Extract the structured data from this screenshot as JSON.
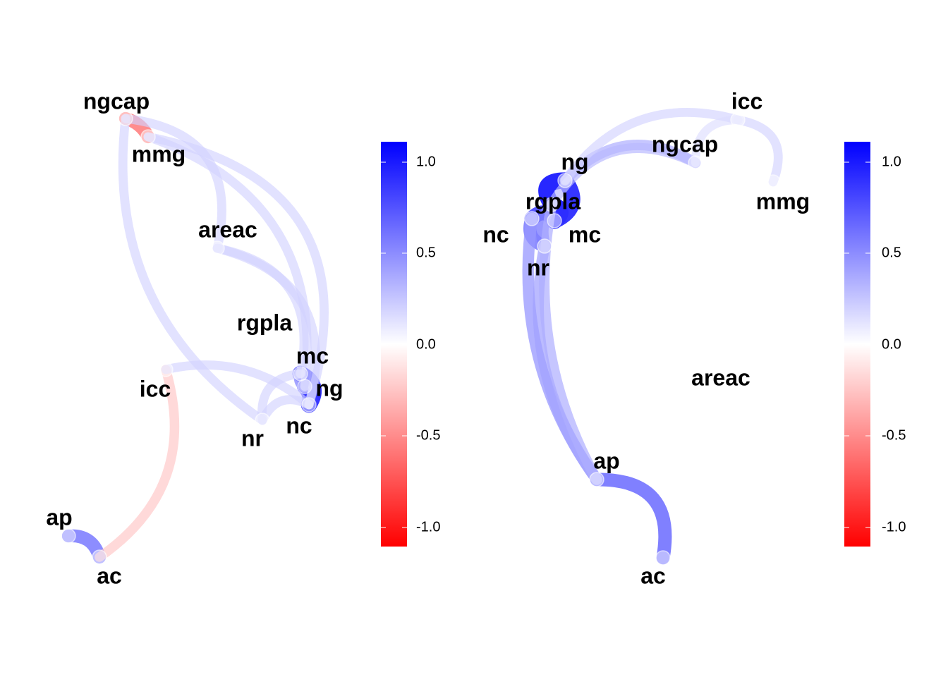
{
  "chart_data": [
    {
      "type": "network",
      "nodes": [
        {
          "id": "ngcap",
          "label": "ngcap"
        },
        {
          "id": "mmg",
          "label": "mmg"
        },
        {
          "id": "areac",
          "label": "areac"
        },
        {
          "id": "rgpla",
          "label": "rgpla"
        },
        {
          "id": "mc",
          "label": "mc"
        },
        {
          "id": "ng",
          "label": "ng"
        },
        {
          "id": "nc",
          "label": "nc"
        },
        {
          "id": "nr",
          "label": "nr"
        },
        {
          "id": "icc",
          "label": "icc"
        },
        {
          "id": "ap",
          "label": "ap"
        },
        {
          "id": "ac",
          "label": "ac"
        }
      ],
      "edges": [
        {
          "from": "ngcap",
          "to": "mmg",
          "value": -0.6
        },
        {
          "from": "ap",
          "to": "ac",
          "value": 0.6
        },
        {
          "from": "icc",
          "to": "ac",
          "value": -0.25
        },
        {
          "from": "mc",
          "to": "ng",
          "value": 0.9
        },
        {
          "from": "nc",
          "to": "ng",
          "value": 0.85
        },
        {
          "from": "mc",
          "to": "nc",
          "value": 0.5
        },
        {
          "from": "ngcap",
          "to": "nr",
          "value": 0.2
        },
        {
          "from": "mmg",
          "to": "nc",
          "value": 0.2
        },
        {
          "from": "ngcap",
          "to": "areac",
          "value": 0.2
        },
        {
          "from": "areac",
          "to": "mc",
          "value": 0.2
        },
        {
          "from": "areac",
          "to": "ng",
          "value": 0.2
        },
        {
          "from": "mmg",
          "to": "ng",
          "value": 0.2
        },
        {
          "from": "icc",
          "to": "ng",
          "value": 0.2
        },
        {
          "from": "nr",
          "to": "mc",
          "value": 0.2
        },
        {
          "from": "nr",
          "to": "ng",
          "value": 0.2
        }
      ],
      "colorbar": {
        "range": [
          -1.1,
          1.1
        ],
        "ticks": [
          "1.0",
          "0.5",
          "0.0",
          "-0.5",
          "-1.0"
        ],
        "low_color": "#FF0000",
        "mid_color": "#FFFFFF",
        "high_color": "#0000FF"
      }
    },
    {
      "type": "network",
      "nodes": [
        {
          "id": "icc",
          "label": "icc"
        },
        {
          "id": "ngcap",
          "label": "ngcap"
        },
        {
          "id": "mmg",
          "label": "mmg"
        },
        {
          "id": "ng",
          "label": "ng"
        },
        {
          "id": "rgpla",
          "label": "rgpla"
        },
        {
          "id": "nc",
          "label": "nc"
        },
        {
          "id": "mc",
          "label": "mc"
        },
        {
          "id": "nr",
          "label": "nr"
        },
        {
          "id": "areac",
          "label": "areac"
        },
        {
          "id": "ap",
          "label": "ap"
        },
        {
          "id": "ac",
          "label": "ac"
        }
      ],
      "edges": [
        {
          "from": "ap",
          "to": "ac",
          "value": 0.65
        },
        {
          "from": "rgpla",
          "to": "ng",
          "value": 0.95
        },
        {
          "from": "rgpla",
          "to": "mc",
          "value": 0.95
        },
        {
          "from": "ng",
          "to": "mc",
          "value": 0.9
        },
        {
          "from": "nc",
          "to": "mc",
          "value": 0.8
        },
        {
          "from": "nc",
          "to": "nr",
          "value": 0.6
        },
        {
          "from": "rgpla",
          "to": "nr",
          "value": 0.55
        },
        {
          "from": "nc",
          "to": "ap",
          "value": 0.45
        },
        {
          "from": "nr",
          "to": "ap",
          "value": 0.4
        },
        {
          "from": "rgpla",
          "to": "ap",
          "value": 0.35
        },
        {
          "from": "ng",
          "to": "ngcap",
          "value": 0.35
        },
        {
          "from": "rgpla",
          "to": "ngcap",
          "value": 0.3
        },
        {
          "from": "ng",
          "to": "icc",
          "value": 0.2
        },
        {
          "from": "icc",
          "to": "mmg",
          "value": 0.2
        },
        {
          "from": "ngcap",
          "to": "icc",
          "value": 0.15
        }
      ],
      "colorbar": {
        "range": [
          -1.1,
          1.1
        ],
        "ticks": [
          "1.0",
          "0.5",
          "0.0",
          "-0.5",
          "-1.0"
        ],
        "low_color": "#FF0000",
        "mid_color": "#FFFFFF",
        "high_color": "#0000FF"
      }
    }
  ]
}
